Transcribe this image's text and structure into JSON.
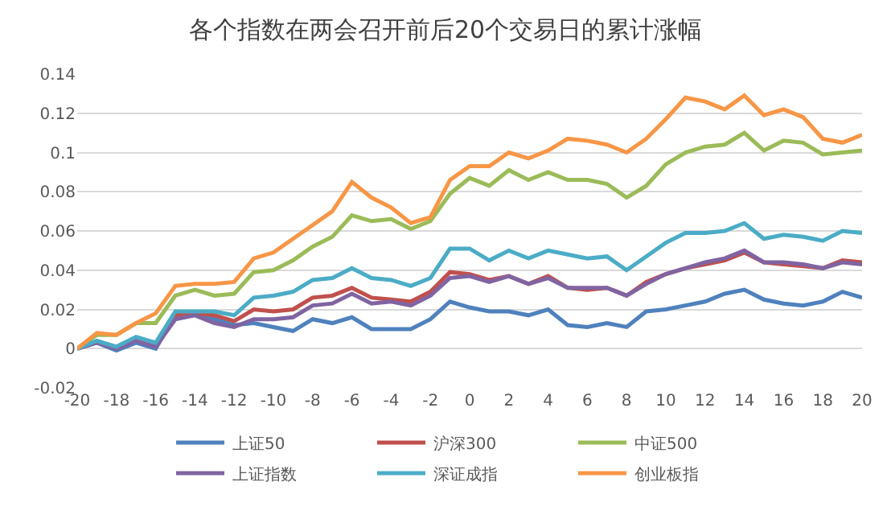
{
  "chart_data": {
    "type": "line",
    "title": "各个指数在两会召开前后20个交易日的累计涨幅",
    "x": [
      -20,
      -19,
      -18,
      -17,
      -16,
      -15,
      -14,
      -13,
      -12,
      -11,
      -10,
      -9,
      -8,
      -7,
      -6,
      -5,
      -4,
      -3,
      -2,
      -1,
      0,
      1,
      2,
      3,
      4,
      5,
      6,
      7,
      8,
      9,
      10,
      11,
      12,
      13,
      14,
      15,
      16,
      17,
      18,
      19,
      20
    ],
    "series": [
      {
        "name": "上证50",
        "color": "#4f81bd",
        "values": [
          0,
          0.003,
          -0.001,
          0.003,
          0.0,
          0.017,
          0.018,
          0.015,
          0.012,
          0.013,
          0.011,
          0.009,
          0.015,
          0.013,
          0.016,
          0.01,
          0.01,
          0.01,
          0.015,
          0.024,
          0.021,
          0.019,
          0.019,
          0.017,
          0.02,
          0.012,
          0.011,
          0.013,
          0.011,
          0.019,
          0.02,
          0.022,
          0.024,
          0.028,
          0.03,
          0.025,
          0.023,
          0.022,
          0.024,
          0.029,
          0.026
        ]
      },
      {
        "name": "沪深300",
        "color": "#c0504d",
        "values": [
          null,
          null,
          null,
          null,
          0.001,
          0.017,
          0.018,
          0.017,
          0.014,
          0.02,
          0.019,
          0.02,
          0.026,
          0.027,
          0.031,
          0.026,
          0.025,
          0.024,
          0.029,
          0.039,
          0.038,
          0.035,
          0.037,
          0.033,
          0.037,
          0.031,
          0.03,
          0.031,
          0.027,
          0.034,
          0.038,
          0.041,
          0.043,
          0.045,
          0.049,
          0.044,
          0.043,
          0.042,
          0.041,
          0.045,
          0.044
        ]
      },
      {
        "name": "中证500",
        "color": "#9bbb59",
        "values": [
          0,
          0.007,
          0.007,
          0.013,
          0.013,
          0.027,
          0.03,
          0.027,
          0.028,
          0.039,
          0.04,
          0.045,
          0.052,
          0.057,
          0.068,
          0.065,
          0.066,
          0.061,
          0.065,
          0.079,
          0.087,
          0.083,
          0.091,
          0.086,
          0.09,
          0.086,
          0.086,
          0.084,
          0.077,
          0.083,
          0.094,
          0.1,
          0.103,
          0.104,
          0.11,
          0.101,
          0.106,
          0.105,
          0.099,
          0.1,
          0.101
        ]
      },
      {
        "name": "上证指数",
        "color": "#8064a2",
        "values": [
          0,
          0.003,
          0.0,
          0.004,
          0.001,
          0.015,
          0.017,
          0.013,
          0.011,
          0.015,
          0.015,
          0.016,
          0.022,
          0.023,
          0.028,
          0.023,
          0.024,
          0.022,
          0.027,
          0.036,
          0.037,
          0.034,
          0.037,
          0.033,
          0.036,
          0.031,
          0.031,
          0.031,
          0.027,
          0.033,
          0.038,
          0.041,
          0.044,
          0.046,
          0.05,
          0.044,
          0.044,
          0.043,
          0.041,
          0.044,
          0.043
        ]
      },
      {
        "name": "深证成指",
        "color": "#4bacc6",
        "values": [
          0,
          0.004,
          0.001,
          0.006,
          0.003,
          0.019,
          0.019,
          0.019,
          0.017,
          0.026,
          0.027,
          0.029,
          0.035,
          0.036,
          0.041,
          0.036,
          0.035,
          0.032,
          0.036,
          0.051,
          0.051,
          0.045,
          0.05,
          0.046,
          0.05,
          0.048,
          0.046,
          0.047,
          0.04,
          0.047,
          0.054,
          0.059,
          0.059,
          0.06,
          0.064,
          0.056,
          0.058,
          0.057,
          0.055,
          0.06,
          0.059
        ]
      },
      {
        "name": "创业板指",
        "color": "#f79646",
        "values": [
          0,
          0.008,
          0.007,
          0.013,
          0.018,
          0.032,
          0.033,
          0.033,
          0.034,
          0.046,
          0.049,
          0.056,
          0.063,
          0.07,
          0.085,
          0.077,
          0.072,
          0.064,
          0.067,
          0.086,
          0.093,
          0.093,
          0.1,
          0.097,
          0.101,
          0.107,
          0.106,
          0.104,
          0.1,
          0.107,
          0.117,
          0.128,
          0.126,
          0.122,
          0.129,
          0.119,
          0.122,
          0.118,
          0.107,
          0.105,
          0.109
        ]
      }
    ],
    "xlim": [
      -20,
      20
    ],
    "xticks": [
      -20,
      -18,
      -16,
      -14,
      -12,
      -10,
      -8,
      -6,
      -4,
      -2,
      0,
      2,
      4,
      6,
      8,
      10,
      12,
      14,
      16,
      18,
      20
    ],
    "ylim": [
      -0.02,
      0.14
    ],
    "yticks": [
      -0.02,
      0,
      0.02,
      0.04,
      0.06,
      0.08,
      0.1,
      0.12,
      0.14
    ],
    "grid": "y",
    "legend": "bottom",
    "marker": "none",
    "line_style": "solid"
  }
}
